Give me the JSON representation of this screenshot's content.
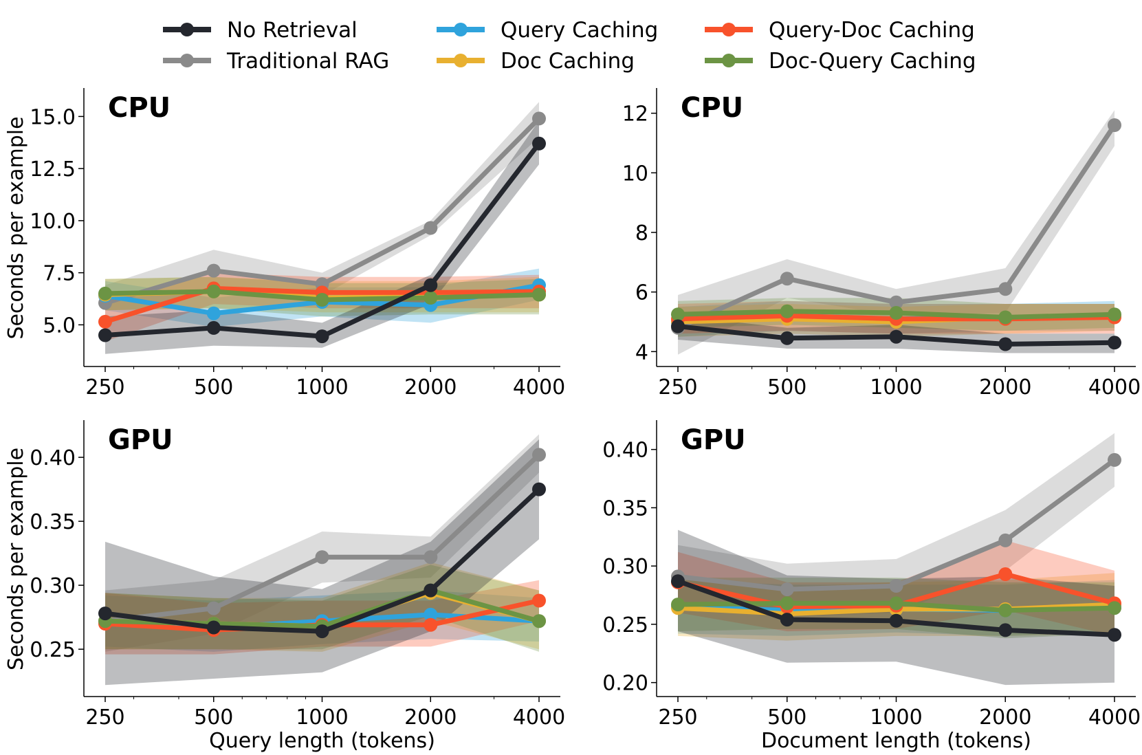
{
  "legend": [
    {
      "key": "no_retrieval",
      "label": "No Retrieval",
      "color": "#24272e"
    },
    {
      "key": "traditional_rag",
      "label": "Traditional RAG",
      "color": "#8a8a8a"
    },
    {
      "key": "query_caching",
      "label": "Query Caching",
      "color": "#2fa3dc"
    },
    {
      "key": "doc_caching",
      "label": "Doc Caching",
      "color": "#e8b030"
    },
    {
      "key": "query_doc_caching",
      "label": "Query-Doc Caching",
      "color": "#f8522b"
    },
    {
      "key": "doc_query_caching",
      "label": "Doc-Query Caching",
      "color": "#6c9444"
    }
  ],
  "chart_data": [
    {
      "id": "top-left",
      "type": "line",
      "title": "CPU",
      "xlabel": "",
      "ylabel": "Seconds per example",
      "x": [
        250,
        500,
        1000,
        2000,
        4000
      ],
      "xscale": "log",
      "xtick_labels": [
        "250",
        "500",
        "1000",
        "2000",
        "4000"
      ],
      "ylim": [
        3.0,
        16.3
      ],
      "yticks": [
        5.0,
        7.5,
        10.0,
        12.5,
        15.0
      ],
      "ytick_labels": [
        "5.0",
        "7.5",
        "10.0",
        "12.5",
        "15.0"
      ],
      "series": [
        {
          "key": "traditional_rag",
          "name": "Traditional RAG",
          "values": [
            6.05,
            7.6,
            6.95,
            9.65,
            14.9
          ],
          "lower": [
            5.2,
            6.6,
            6.4,
            9.3,
            14.0
          ],
          "upper": [
            6.9,
            8.6,
            7.5,
            10.0,
            15.7
          ]
        },
        {
          "key": "query_caching",
          "name": "Query Caching",
          "values": [
            6.4,
            5.55,
            6.1,
            5.95,
            6.9
          ],
          "lower": [
            5.7,
            4.9,
            5.4,
            5.1,
            6.2
          ],
          "upper": [
            7.1,
            6.3,
            6.8,
            6.8,
            7.7
          ]
        },
        {
          "key": "doc_caching",
          "name": "Doc Caching",
          "values": [
            6.45,
            6.6,
            6.3,
            6.35,
            6.45
          ],
          "lower": [
            5.7,
            5.8,
            5.6,
            5.6,
            5.6
          ],
          "upper": [
            7.2,
            7.3,
            7.1,
            7.1,
            7.3
          ]
        },
        {
          "key": "query_doc_caching",
          "name": "Query-Doc Caching",
          "values": [
            5.15,
            6.75,
            6.55,
            6.55,
            6.6
          ],
          "lower": [
            4.2,
            6.0,
            5.8,
            5.8,
            5.8
          ],
          "upper": [
            6.1,
            7.5,
            7.3,
            7.3,
            7.4
          ]
        },
        {
          "key": "doc_query_caching",
          "name": "Doc-Query Caching",
          "values": [
            6.5,
            6.6,
            6.2,
            6.3,
            6.45
          ],
          "lower": [
            5.7,
            5.8,
            5.4,
            5.5,
            5.5
          ],
          "upper": [
            7.2,
            7.3,
            7.0,
            7.0,
            7.2
          ]
        },
        {
          "key": "no_retrieval",
          "name": "No Retrieval",
          "values": [
            4.5,
            4.85,
            4.45,
            6.9,
            13.7
          ],
          "lower": [
            3.6,
            4.0,
            3.9,
            6.0,
            12.7
          ],
          "upper": [
            5.4,
            5.7,
            5.1,
            7.4,
            14.8
          ]
        }
      ]
    },
    {
      "id": "top-right",
      "type": "line",
      "title": "CPU",
      "xlabel": "",
      "ylabel": "",
      "x": [
        250,
        500,
        1000,
        2000,
        4000
      ],
      "xscale": "log",
      "xtick_labels": [
        "250",
        "500",
        "1000",
        "2000",
        "4000"
      ],
      "ylim": [
        3.5,
        12.8
      ],
      "yticks": [
        4,
        6,
        8,
        10,
        12
      ],
      "ytick_labels": [
        "4",
        "6",
        "8",
        "10",
        "12"
      ],
      "series": [
        {
          "key": "traditional_rag",
          "name": "Traditional RAG",
          "values": [
            4.8,
            6.45,
            5.65,
            6.1,
            11.6
          ],
          "lower": [
            3.9,
            5.8,
            5.2,
            5.3,
            10.9
          ],
          "upper": [
            5.9,
            7.1,
            6.1,
            6.8,
            12.1
          ]
        },
        {
          "key": "query_caching",
          "name": "Query Caching",
          "values": [
            5.0,
            5.2,
            5.1,
            5.15,
            5.2
          ],
          "lower": [
            4.5,
            4.7,
            4.6,
            4.7,
            4.7
          ],
          "upper": [
            5.5,
            5.7,
            5.6,
            5.6,
            5.7
          ]
        },
        {
          "key": "doc_caching",
          "name": "Doc Caching",
          "values": [
            5.0,
            5.1,
            5.0,
            5.15,
            5.2
          ],
          "lower": [
            4.5,
            4.6,
            4.5,
            4.6,
            4.7
          ],
          "upper": [
            5.5,
            5.6,
            5.5,
            5.6,
            5.6
          ]
        },
        {
          "key": "query_doc_caching",
          "name": "Query-Doc Caching",
          "values": [
            5.1,
            5.2,
            5.1,
            5.1,
            5.15
          ],
          "lower": [
            4.6,
            4.7,
            4.6,
            4.6,
            4.6
          ],
          "upper": [
            5.6,
            5.7,
            5.6,
            5.6,
            5.6
          ]
        },
        {
          "key": "doc_query_caching",
          "name": "Doc-Query Caching",
          "values": [
            5.25,
            5.35,
            5.3,
            5.15,
            5.25
          ],
          "lower": [
            4.8,
            4.9,
            4.8,
            4.7,
            4.8
          ],
          "upper": [
            5.7,
            5.8,
            5.8,
            5.6,
            5.6
          ]
        },
        {
          "key": "no_retrieval",
          "name": "No Retrieval",
          "values": [
            4.85,
            4.45,
            4.5,
            4.25,
            4.3
          ],
          "lower": [
            4.4,
            4.1,
            4.1,
            3.95,
            3.95
          ],
          "upper": [
            5.2,
            4.8,
            4.9,
            4.6,
            4.6
          ]
        }
      ]
    },
    {
      "id": "bottom-left",
      "type": "line",
      "title": "GPU",
      "xlabel": "Query length (tokens)",
      "ylabel": "Seconds per example",
      "x": [
        250,
        500,
        1000,
        2000,
        4000
      ],
      "xscale": "log",
      "xtick_labels": [
        "250",
        "500",
        "1000",
        "2000",
        "4000"
      ],
      "ylim": [
        0.213,
        0.428
      ],
      "yticks": [
        0.25,
        0.3,
        0.35,
        0.4
      ],
      "ytick_labels": [
        "0.25",
        "0.30",
        "0.35",
        "0.40"
      ],
      "series": [
        {
          "key": "traditional_rag",
          "name": "Traditional RAG",
          "values": [
            0.272,
            0.282,
            0.322,
            0.322,
            0.402
          ],
          "lower": [
            0.248,
            0.262,
            0.302,
            0.306,
            0.388
          ],
          "upper": [
            0.296,
            0.304,
            0.342,
            0.338,
            0.418
          ]
        },
        {
          "key": "query_caching",
          "name": "Query Caching",
          "values": [
            0.272,
            0.267,
            0.272,
            0.277,
            0.272
          ],
          "lower": [
            0.252,
            0.248,
            0.254,
            0.258,
            0.256
          ],
          "upper": [
            0.292,
            0.288,
            0.292,
            0.296,
            0.29
          ]
        },
        {
          "key": "doc_caching",
          "name": "Doc Caching",
          "values": [
            0.272,
            0.27,
            0.268,
            0.294,
            0.272
          ],
          "lower": [
            0.25,
            0.25,
            0.248,
            0.272,
            0.25
          ],
          "upper": [
            0.294,
            0.29,
            0.29,
            0.318,
            0.296
          ]
        },
        {
          "key": "query_doc_caching",
          "name": "Query-Doc Caching",
          "values": [
            0.27,
            0.265,
            0.269,
            0.269,
            0.288
          ],
          "lower": [
            0.246,
            0.246,
            0.252,
            0.252,
            0.272
          ],
          "upper": [
            0.294,
            0.286,
            0.288,
            0.288,
            0.304
          ]
        },
        {
          "key": "doc_query_caching",
          "name": "Doc-Query Caching",
          "values": [
            0.272,
            0.27,
            0.268,
            0.296,
            0.272
          ],
          "lower": [
            0.25,
            0.25,
            0.25,
            0.276,
            0.248
          ],
          "upper": [
            0.294,
            0.29,
            0.288,
            0.316,
            0.296
          ]
        },
        {
          "key": "no_retrieval",
          "name": "No Retrieval",
          "values": [
            0.278,
            0.267,
            0.264,
            0.296,
            0.375
          ],
          "lower": [
            0.222,
            0.227,
            0.232,
            0.264,
            0.336
          ],
          "upper": [
            0.334,
            0.307,
            0.297,
            0.334,
            0.414
          ]
        }
      ]
    },
    {
      "id": "bottom-right",
      "type": "line",
      "title": "GPU",
      "xlabel": "Document length (tokens)",
      "ylabel": "",
      "x": [
        250,
        500,
        1000,
        2000,
        4000
      ],
      "xscale": "log",
      "xtick_labels": [
        "250",
        "500",
        "1000",
        "2000",
        "4000"
      ],
      "ylim": [
        0.188,
        0.424
      ],
      "yticks": [
        0.2,
        0.25,
        0.3,
        0.35,
        0.4
      ],
      "ytick_labels": [
        "0.20",
        "0.25",
        "0.30",
        "0.35",
        "0.40"
      ],
      "series": [
        {
          "key": "traditional_rag",
          "name": "Traditional RAG",
          "values": [
            0.291,
            0.28,
            0.283,
            0.322,
            0.391
          ],
          "lower": [
            0.264,
            0.256,
            0.26,
            0.296,
            0.368
          ],
          "upper": [
            0.318,
            0.302,
            0.306,
            0.348,
            0.414
          ]
        },
        {
          "key": "query_caching",
          "name": "Query Caching",
          "values": [
            0.265,
            0.262,
            0.263,
            0.262,
            0.266
          ],
          "lower": [
            0.242,
            0.24,
            0.243,
            0.24,
            0.244
          ],
          "upper": [
            0.288,
            0.284,
            0.284,
            0.284,
            0.288
          ]
        },
        {
          "key": "doc_caching",
          "name": "Doc Caching",
          "values": [
            0.264,
            0.259,
            0.263,
            0.263,
            0.267
          ],
          "lower": [
            0.24,
            0.236,
            0.24,
            0.24,
            0.242
          ],
          "upper": [
            0.288,
            0.282,
            0.286,
            0.288,
            0.294
          ]
        },
        {
          "key": "query_doc_caching",
          "name": "Query-Doc Caching",
          "values": [
            0.286,
            0.265,
            0.266,
            0.293,
            0.268
          ],
          "lower": [
            0.26,
            0.244,
            0.246,
            0.262,
            0.24
          ],
          "upper": [
            0.312,
            0.286,
            0.286,
            0.322,
            0.296
          ]
        },
        {
          "key": "doc_query_caching",
          "name": "Doc-Query Caching",
          "values": [
            0.267,
            0.268,
            0.268,
            0.262,
            0.264
          ],
          "lower": [
            0.244,
            0.246,
            0.246,
            0.238,
            0.242
          ],
          "upper": [
            0.29,
            0.29,
            0.29,
            0.286,
            0.286
          ]
        },
        {
          "key": "no_retrieval",
          "name": "No Retrieval",
          "values": [
            0.287,
            0.254,
            0.253,
            0.245,
            0.241
          ],
          "lower": [
            0.244,
            0.217,
            0.218,
            0.198,
            0.2
          ],
          "upper": [
            0.331,
            0.292,
            0.289,
            0.291,
            0.283
          ]
        }
      ]
    }
  ]
}
